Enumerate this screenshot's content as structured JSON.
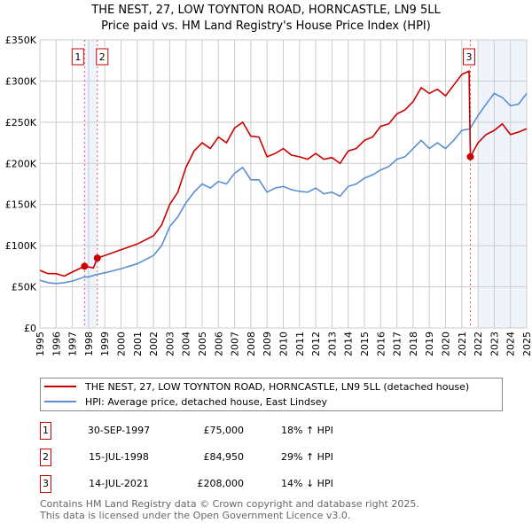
{
  "title": "THE NEST, 27, LOW TOYNTON ROAD, HORNCASTLE, LN9 5LL",
  "subtitle": "Price paid vs. HM Land Registry's House Price Index (HPI)",
  "legend": [
    {
      "label": "THE NEST, 27, LOW TOYNTON ROAD, HORNCASTLE, LN9 5LL (detached house)",
      "color": "#cc0000"
    },
    {
      "label": "HPI: Average price, detached house, East Lindsey",
      "color": "#5b8fd0"
    }
  ],
  "transactions": [
    {
      "num": "1",
      "date": "30-SEP-1997",
      "price": "£75,000",
      "hpi": "18% ↑ HPI"
    },
    {
      "num": "2",
      "date": "15-JUL-1998",
      "price": "£84,950",
      "hpi": "29% ↑ HPI"
    },
    {
      "num": "3",
      "date": "14-JUL-2021",
      "price": "£208,000",
      "hpi": "14% ↓ HPI"
    }
  ],
  "footer": [
    "Contains HM Land Registry data © Crown copyright and database right 2025.",
    "This data is licensed under the Open Government Licence v3.0."
  ],
  "chart_data": {
    "type": "line",
    "xlim": [
      1995,
      2025
    ],
    "ylim": [
      0,
      350000
    ],
    "grid": true,
    "yticks": [
      0,
      50000,
      100000,
      150000,
      200000,
      250000,
      300000,
      350000
    ],
    "ytick_labels": [
      "£0",
      "£50K",
      "£100K",
      "£150K",
      "£200K",
      "£250K",
      "£300K",
      "£350K"
    ],
    "xticks": [
      1995,
      1996,
      1997,
      1998,
      1999,
      2000,
      2001,
      2002,
      2003,
      2004,
      2005,
      2006,
      2007,
      2008,
      2009,
      2010,
      2011,
      2012,
      2013,
      2014,
      2015,
      2016,
      2017,
      2018,
      2019,
      2020,
      2021,
      2022,
      2023,
      2024,
      2025
    ],
    "series": [
      {
        "name": "THE NEST, 27, LOW TOYNTON ROAD, HORNCASTLE, LN9 5LL (detached house)",
        "color": "#cc0000",
        "x": [
          1995,
          1995.5,
          1996,
          1996.5,
          1997,
          1997.75,
          1998.3,
          1998.54,
          1999,
          2000,
          2001,
          2002,
          2002.5,
          2003,
          2003.5,
          2004,
          2004.5,
          2005,
          2005.5,
          2006,
          2006.5,
          2007,
          2007.5,
          2008,
          2008.5,
          2009,
          2009.5,
          2010,
          2010.5,
          2011,
          2011.5,
          2012,
          2012.5,
          2013,
          2013.5,
          2014,
          2014.5,
          2015,
          2015.5,
          2016,
          2016.5,
          2017,
          2017.5,
          2018,
          2018.5,
          2019,
          2019.5,
          2020,
          2020.5,
          2021,
          2021.45,
          2021.53,
          2022,
          2022.5,
          2023,
          2023.5,
          2024,
          2024.5,
          2025
        ],
        "y": [
          70000,
          66000,
          66000,
          63000,
          68000,
          75000,
          73000,
          84950,
          88000,
          95000,
          102000,
          112000,
          125000,
          150000,
          165000,
          195000,
          215000,
          225000,
          218000,
          232000,
          225000,
          243000,
          250000,
          233000,
          232000,
          208000,
          212000,
          218000,
          210000,
          208000,
          205000,
          212000,
          205000,
          207000,
          200000,
          215000,
          218000,
          228000,
          232000,
          245000,
          248000,
          260000,
          265000,
          275000,
          292000,
          285000,
          290000,
          282000,
          295000,
          308000,
          312000,
          208000,
          225000,
          235000,
          240000,
          248000,
          235000,
          238000,
          242000
        ]
      },
      {
        "name": "HPI: Average price, detached house, East Lindsey",
        "color": "#5b8fd0",
        "x": [
          1995,
          1995.5,
          1996,
          1996.5,
          1997,
          1997.75,
          1998,
          1998.5,
          1999,
          2000,
          2001,
          2002,
          2002.5,
          2003,
          2003.5,
          2004,
          2004.5,
          2005,
          2005.5,
          2006,
          2006.5,
          2007,
          2007.5,
          2008,
          2008.5,
          2009,
          2009.5,
          2010,
          2010.5,
          2011,
          2011.5,
          2012,
          2012.5,
          2013,
          2013.5,
          2014,
          2014.5,
          2015,
          2015.5,
          2016,
          2016.5,
          2017,
          2017.5,
          2018,
          2018.5,
          2019,
          2019.5,
          2020,
          2020.5,
          2021,
          2021.5,
          2022,
          2022.5,
          2023,
          2023.5,
          2024,
          2024.5,
          2025
        ],
        "y": [
          58000,
          55000,
          54000,
          55000,
          57000,
          62000,
          62000,
          65000,
          67000,
          72000,
          78000,
          88000,
          100000,
          123000,
          135000,
          152000,
          165000,
          175000,
          170000,
          178000,
          175000,
          188000,
          195000,
          180000,
          180000,
          165000,
          170000,
          172000,
          168000,
          166000,
          165000,
          170000,
          163000,
          165000,
          160000,
          172000,
          175000,
          182000,
          186000,
          192000,
          196000,
          205000,
          208000,
          218000,
          228000,
          218000,
          225000,
          218000,
          228000,
          240000,
          242000,
          258000,
          272000,
          285000,
          280000,
          270000,
          272000,
          285000
        ]
      }
    ],
    "sales": [
      {
        "label": "1",
        "x": 1997.75,
        "y": 75000
      },
      {
        "label": "2",
        "x": 1998.54,
        "y": 84950
      },
      {
        "label": "3",
        "x": 2021.53,
        "y": 208000
      }
    ],
    "shaded_ranges": [
      [
        1997.75,
        1998.54
      ],
      [
        2022,
        2025
      ]
    ]
  }
}
